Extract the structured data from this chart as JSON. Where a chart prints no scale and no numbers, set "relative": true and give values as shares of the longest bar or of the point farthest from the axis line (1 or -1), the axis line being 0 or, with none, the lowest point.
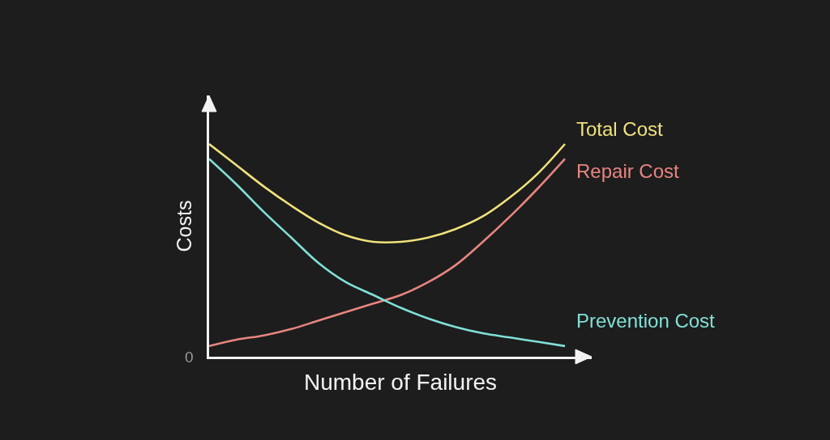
{
  "chart_data": {
    "type": "line",
    "xlabel": "Number of Failures",
    "ylabel": "Costs",
    "relative": true,
    "legend": false,
    "grid": false,
    "marker": "none",
    "line_style": "solid",
    "categories": [
      null,
      null,
      null,
      null,
      null,
      null,
      null,
      null,
      null,
      null,
      null,
      null,
      null,
      null
    ],
    "series": [
      {
        "name": "Total Cost",
        "color": "#f0e17c",
        "values": [
          1.0,
          0.9,
          0.8,
          0.71,
          0.63,
          0.57,
          0.54,
          0.54,
          0.56,
          0.6,
          0.66,
          0.75,
          0.86,
          1.0
        ]
      },
      {
        "name": "Repair Cost",
        "color": "#e88580",
        "values": [
          0.05,
          0.08,
          0.1,
          0.13,
          0.17,
          0.21,
          0.25,
          0.29,
          0.35,
          0.43,
          0.54,
          0.66,
          0.79,
          0.93
        ]
      },
      {
        "name": "Prevention Cost",
        "color": "#80e0d6",
        "values": [
          0.93,
          0.81,
          0.68,
          0.56,
          0.44,
          0.35,
          0.29,
          0.23,
          0.18,
          0.14,
          0.11,
          0.09,
          0.07,
          0.05
        ]
      }
    ],
    "annotations": [
      "0"
    ]
  }
}
